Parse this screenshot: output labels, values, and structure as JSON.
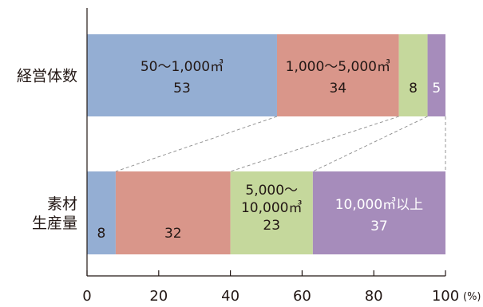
{
  "chart_data": {
    "type": "bar",
    "stacked": true,
    "orientation": "horizontal",
    "categories": [
      [
        "経営体数"
      ],
      [
        "素材",
        "生産量"
      ]
    ],
    "x_unit": "(%)",
    "xlim": [
      0,
      100
    ],
    "x_ticks": [
      0,
      20,
      40,
      60,
      80,
      100
    ],
    "x_tick_labels": [
      "0",
      "20",
      "40",
      "60",
      "80",
      "100"
    ],
    "connectors": true,
    "series": [
      {
        "color": "#94aed3",
        "values": [
          53,
          8
        ],
        "labels": [
          [
            "50〜1,000㎥",
            "53"
          ],
          [
            "8"
          ]
        ],
        "label_color": "#231815"
      },
      {
        "color": "#d9968a",
        "values": [
          34,
          32
        ],
        "labels": [
          [
            "1,000〜5,000㎥",
            "34"
          ],
          [
            "32"
          ]
        ],
        "label_color": "#231815"
      },
      {
        "color": "#c5d89c",
        "values": [
          8,
          23
        ],
        "labels": [
          [
            "8"
          ],
          [
            "5,000〜",
            "10,000㎥",
            "23"
          ]
        ],
        "label_color": "#231815"
      },
      {
        "color": "#a68cbb",
        "values": [
          5,
          37
        ],
        "labels": [
          [
            "5"
          ],
          [
            "10,000㎥以上",
            "37"
          ]
        ],
        "label_color": "#ffffff"
      }
    ]
  }
}
